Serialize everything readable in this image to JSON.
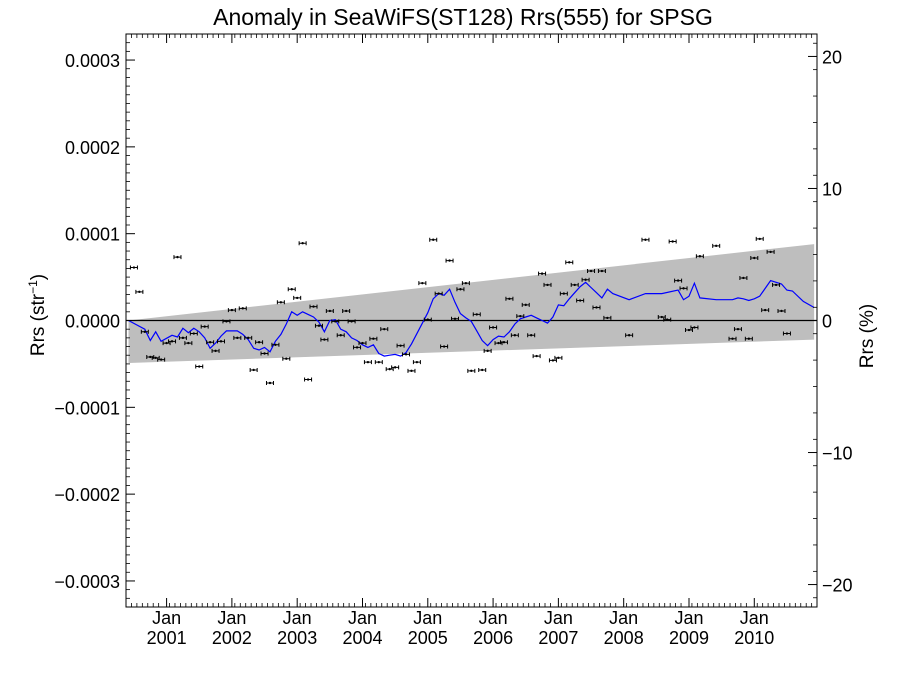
{
  "chart_data": {
    "type": "scatter",
    "title": "Anomaly in SeaWiFS(ST128) Rrs(555) for SPSG",
    "ylabel_left": "Rrs (str",
    "ylabel_left_sup": "−1",
    "ylabel_left_close": ")",
    "ylabel_right": "Rrs (%)",
    "left_ylim": [
      -0.00033,
      0.00033
    ],
    "right_ylim": [
      -21.7,
      21.7
    ],
    "xlim": [
      "2000-06-01",
      "2010-12-31"
    ],
    "grid": false,
    "left_ticks": [
      {
        "v": 0.0003,
        "label": "0.0003"
      },
      {
        "v": 0.0002,
        "label": "0.0002"
      },
      {
        "v": 0.0001,
        "label": "0.0001"
      },
      {
        "v": 0.0,
        "label": "0.0000"
      },
      {
        "v": -0.0001,
        "label": "−0.0001"
      },
      {
        "v": -0.0002,
        "label": "−0.0002"
      },
      {
        "v": -0.0003,
        "label": "−0.0003"
      }
    ],
    "right_ticks": [
      {
        "v": 20,
        "label": "20"
      },
      {
        "v": 10,
        "label": "10"
      },
      {
        "v": 0,
        "label": "0"
      },
      {
        "v": -10,
        "label": "−10"
      },
      {
        "v": -20,
        "label": "−20"
      }
    ],
    "x_ticks": [
      {
        "date": "2001-01",
        "label": "Jan",
        "year": "2001"
      },
      {
        "date": "2002-01",
        "label": "Jan",
        "year": "2002"
      },
      {
        "date": "2003-01",
        "label": "Jan",
        "year": "2003"
      },
      {
        "date": "2004-01",
        "label": "Jan",
        "year": "2004"
      },
      {
        "date": "2005-01",
        "label": "Jan",
        "year": "2005"
      },
      {
        "date": "2006-01",
        "label": "Jan",
        "year": "2006"
      },
      {
        "date": "2007-01",
        "label": "Jan",
        "year": "2007"
      },
      {
        "date": "2008-01",
        "label": "Jan",
        "year": "2008"
      },
      {
        "date": "2009-01",
        "label": "Jan",
        "year": "2009"
      },
      {
        "date": "2010-01",
        "label": "Jan",
        "year": "2010"
      }
    ],
    "band": {
      "start": {
        "date": "2000-06",
        "upper": 0.0,
        "lower": -4.9e-05
      },
      "end": {
        "date": "2010-12",
        "upper": 8.8e-05,
        "lower": -2.2e-05
      },
      "color": "#bebebe"
    },
    "zero_line_color": "#000000",
    "series": [
      {
        "type": "scatter",
        "color": "#000000",
        "points": [
          [
            "2000-07",
            6.1e-05
          ],
          [
            "2000-08",
            3.3e-05
          ],
          [
            "2000-09",
            -1.3e-05
          ],
          [
            "2000-10",
            -4.2e-05
          ],
          [
            "2000-11",
            -4.3e-05
          ],
          [
            "2000-12",
            -4.5e-05
          ],
          [
            "2001-01",
            -2.6e-05
          ],
          [
            "2001-02",
            -2.4e-05
          ],
          [
            "2001-03",
            7.3e-05
          ],
          [
            "2001-04",
            -2e-05
          ],
          [
            "2001-05",
            -2.6e-05
          ],
          [
            "2001-06",
            -1.5e-05
          ],
          [
            "2001-07",
            -5.3e-05
          ],
          [
            "2001-08",
            -7e-06
          ],
          [
            "2001-09",
            -2.5e-05
          ],
          [
            "2001-10",
            -3.5e-05
          ],
          [
            "2001-11",
            -2.4e-05
          ],
          [
            "2001-12",
            -1e-06
          ],
          [
            "2002-01",
            1.2e-05
          ],
          [
            "2002-02",
            -2e-05
          ],
          [
            "2002-03",
            1.4e-05
          ],
          [
            "2002-04",
            -2e-05
          ],
          [
            "2002-05",
            -5.7e-05
          ],
          [
            "2002-06",
            -2.5e-05
          ],
          [
            "2002-07",
            -3.8e-05
          ],
          [
            "2002-08",
            -7.2e-05
          ],
          [
            "2002-09",
            -2.8e-05
          ],
          [
            "2002-10",
            2.1e-05
          ],
          [
            "2002-11",
            -4.4e-05
          ],
          [
            "2002-12",
            3.6e-05
          ],
          [
            "2003-01",
            2.6e-05
          ],
          [
            "2003-02",
            8.9e-05
          ],
          [
            "2003-03",
            -6.8e-05
          ],
          [
            "2003-04",
            1.6e-05
          ],
          [
            "2003-05",
            -6e-06
          ],
          [
            "2003-06",
            -2.2e-05
          ],
          [
            "2003-07",
            1.1e-05
          ],
          [
            "2003-08",
            -1e-06
          ],
          [
            "2003-09",
            -1.7e-05
          ],
          [
            "2003-10",
            1.1e-05
          ],
          [
            "2003-11",
            -1e-06
          ],
          [
            "2003-12",
            -3.1e-05
          ],
          [
            "2004-01",
            -2.6e-05
          ],
          [
            "2004-02",
            -4.8e-05
          ],
          [
            "2004-03",
            -2.1e-05
          ],
          [
            "2004-04",
            -4.8e-05
          ],
          [
            "2004-05",
            -1e-05
          ],
          [
            "2004-06",
            -5.6e-05
          ],
          [
            "2004-07",
            -5.4e-05
          ],
          [
            "2004-08",
            -2.9e-05
          ],
          [
            "2004-09",
            -3.9e-05
          ],
          [
            "2004-10",
            -5.8e-05
          ],
          [
            "2004-11",
            -4.8e-05
          ],
          [
            "2004-12",
            4.3e-05
          ],
          [
            "2005-01",
            1e-06
          ],
          [
            "2005-02",
            9.3e-05
          ],
          [
            "2005-03",
            3.1e-05
          ],
          [
            "2005-04",
            -3e-05
          ],
          [
            "2005-05",
            6.9e-05
          ],
          [
            "2005-06",
            2e-06
          ],
          [
            "2005-07",
            3.6e-05
          ],
          [
            "2005-08",
            4.3e-05
          ],
          [
            "2005-09",
            -5.8e-05
          ],
          [
            "2005-10",
            7e-06
          ],
          [
            "2005-11",
            -5.7e-05
          ],
          [
            "2005-12",
            -3.5e-05
          ],
          [
            "2006-01",
            -8e-06
          ],
          [
            "2006-02",
            -2.6e-05
          ],
          [
            "2006-03",
            -2.5e-05
          ],
          [
            "2006-04",
            2.5e-05
          ],
          [
            "2006-05",
            -1.7e-05
          ],
          [
            "2006-06",
            5e-06
          ],
          [
            "2006-07",
            1.8e-05
          ],
          [
            "2006-08",
            -1.7e-05
          ],
          [
            "2006-09",
            -4.1e-05
          ],
          [
            "2006-10",
            5.4e-05
          ],
          [
            "2006-11",
            4.1e-05
          ],
          [
            "2006-12",
            -4.6e-05
          ],
          [
            "2007-01",
            -4.3e-05
          ],
          [
            "2007-02",
            3.1e-05
          ],
          [
            "2007-03",
            6.7e-05
          ],
          [
            "2007-04",
            4.1e-05
          ],
          [
            "2007-05",
            2.3e-05
          ],
          [
            "2007-06",
            4.7e-05
          ],
          [
            "2007-07",
            5.7e-05
          ],
          [
            "2007-08",
            1.5e-05
          ],
          [
            "2007-09",
            5.7e-05
          ],
          [
            "2007-10",
            3e-06
          ],
          [
            "2008-02",
            -1.7e-05
          ],
          [
            "2008-05",
            9.3e-05
          ],
          [
            "2008-08",
            4e-06
          ],
          [
            "2008-09",
            1e-06
          ],
          [
            "2008-10",
            9.1e-05
          ],
          [
            "2008-11",
            4.6e-05
          ],
          [
            "2008-12",
            3.7e-05
          ],
          [
            "2009-01",
            -1.1e-05
          ],
          [
            "2009-02",
            -8e-06
          ],
          [
            "2009-03",
            7.4e-05
          ],
          [
            "2009-06",
            8.6e-05
          ],
          [
            "2009-09",
            -2.1e-05
          ],
          [
            "2009-10",
            -1e-05
          ],
          [
            "2009-11",
            4.9e-05
          ],
          [
            "2009-12",
            -2.1e-05
          ],
          [
            "2010-01",
            7.2e-05
          ],
          [
            "2010-02",
            9.4e-05
          ],
          [
            "2010-03",
            1.2e-05
          ],
          [
            "2010-04",
            7.9e-05
          ],
          [
            "2010-05",
            4.1e-05
          ],
          [
            "2010-06",
            1.1e-05
          ],
          [
            "2010-07",
            -1.5e-05
          ]
        ]
      },
      {
        "type": "line",
        "color": "#0000ff",
        "points": [
          [
            "2000-06",
            0.0
          ],
          [
            "2000-09",
            -1e-05
          ],
          [
            "2000-10",
            -2.3e-05
          ],
          [
            "2000-11",
            -1.3e-05
          ],
          [
            "2000-12",
            -2.4e-05
          ],
          [
            "2001-02",
            -1.7e-05
          ],
          [
            "2001-03",
            -1.9e-05
          ],
          [
            "2001-04",
            -9e-06
          ],
          [
            "2001-05",
            -1.4e-05
          ],
          [
            "2001-06",
            -9e-06
          ],
          [
            "2001-07",
            -1.3e-05
          ],
          [
            "2001-08",
            -2e-05
          ],
          [
            "2001-09",
            -3.2e-05
          ],
          [
            "2001-10",
            -2.6e-05
          ],
          [
            "2001-11",
            -1.8e-05
          ],
          [
            "2001-12",
            -1.2e-05
          ],
          [
            "2002-02",
            -1.2e-05
          ],
          [
            "2002-03",
            -1.6e-05
          ],
          [
            "2002-04",
            -2.2e-05
          ],
          [
            "2002-05",
            -3.2e-05
          ],
          [
            "2002-06",
            -3.4e-05
          ],
          [
            "2002-07",
            -3.1e-05
          ],
          [
            "2002-08",
            -3.6e-05
          ],
          [
            "2002-09",
            -2.4e-05
          ],
          [
            "2002-10",
            -1.6e-05
          ],
          [
            "2002-11",
            -4e-06
          ],
          [
            "2002-12",
            1e-05
          ],
          [
            "2003-01",
            6e-06
          ],
          [
            "2003-02",
            1e-05
          ],
          [
            "2003-03",
            7e-06
          ],
          [
            "2003-04",
            4e-06
          ],
          [
            "2003-05",
            -2e-06
          ],
          [
            "2003-06",
            -1.3e-05
          ],
          [
            "2003-07",
            0.0
          ],
          [
            "2003-08",
            1e-06
          ],
          [
            "2003-09",
            -1e-05
          ],
          [
            "2003-10",
            -1.3e-05
          ],
          [
            "2003-11",
            -2e-05
          ],
          [
            "2003-12",
            -2.3e-05
          ],
          [
            "2004-01",
            -2.8e-05
          ],
          [
            "2004-02",
            -3.1e-05
          ],
          [
            "2004-03",
            -2.8e-05
          ],
          [
            "2004-04",
            -3.8e-05
          ],
          [
            "2004-05",
            -4.1e-05
          ],
          [
            "2004-06",
            -4e-05
          ],
          [
            "2004-07",
            -3.9e-05
          ],
          [
            "2004-08",
            -4.1e-05
          ],
          [
            "2004-09",
            -3.7e-05
          ],
          [
            "2004-10",
            -2.7e-05
          ],
          [
            "2005-01",
            9e-06
          ],
          [
            "2005-02",
            2.5e-05
          ],
          [
            "2005-03",
            3.1e-05
          ],
          [
            "2005-04",
            2.9e-05
          ],
          [
            "2005-05",
            3.6e-05
          ],
          [
            "2005-06",
            2.1e-05
          ],
          [
            "2005-07",
            8e-06
          ],
          [
            "2005-08",
            3e-06
          ],
          [
            "2005-09",
            -1e-06
          ],
          [
            "2005-10",
            -1.2e-05
          ],
          [
            "2005-11",
            -2.3e-05
          ],
          [
            "2005-12",
            -2.9e-05
          ],
          [
            "2006-01",
            -2.2e-05
          ],
          [
            "2006-02",
            -1.8e-05
          ],
          [
            "2006-03",
            -1.9e-05
          ],
          [
            "2006-04",
            -1.3e-05
          ],
          [
            "2006-05",
            -4e-06
          ],
          [
            "2006-06",
            2e-06
          ],
          [
            "2006-07",
            4e-06
          ],
          [
            "2006-08",
            6e-06
          ],
          [
            "2006-09",
            3e-06
          ],
          [
            "2006-10",
            0.0
          ],
          [
            "2006-11",
            -3e-06
          ],
          [
            "2006-12",
            4e-06
          ],
          [
            "2007-01",
            1.8e-05
          ],
          [
            "2007-02",
            1.7e-05
          ],
          [
            "2007-03",
            2.5e-05
          ],
          [
            "2007-04",
            3.2e-05
          ],
          [
            "2007-05",
            3.9e-05
          ],
          [
            "2007-06",
            4.4e-05
          ],
          [
            "2007-07",
            3.8e-05
          ],
          [
            "2007-08",
            3.2e-05
          ],
          [
            "2007-09",
            2.6e-05
          ],
          [
            "2007-10",
            3.6e-05
          ],
          [
            "2007-11",
            3.1e-05
          ],
          [
            "2008-02",
            2.4e-05
          ],
          [
            "2008-05",
            3.1e-05
          ],
          [
            "2008-08",
            3.1e-05
          ],
          [
            "2008-11",
            3.5e-05
          ],
          [
            "2008-12",
            2.4e-05
          ],
          [
            "2009-01",
            2.8e-05
          ],
          [
            "2009-02",
            4.3e-05
          ],
          [
            "2009-03",
            2.6e-05
          ],
          [
            "2009-06",
            2.4e-05
          ],
          [
            "2009-09",
            2.4e-05
          ],
          [
            "2009-10",
            2.6e-05
          ],
          [
            "2009-11",
            2.5e-05
          ],
          [
            "2009-12",
            2.3e-05
          ],
          [
            "2010-01",
            2.5e-05
          ],
          [
            "2010-02",
            2.8e-05
          ],
          [
            "2010-04",
            4.6e-05
          ],
          [
            "2010-06",
            4.2e-05
          ],
          [
            "2010-07",
            3.5e-05
          ],
          [
            "2010-08",
            3.4e-05
          ],
          [
            "2010-10",
            2.2e-05
          ],
          [
            "2010-12",
            1.5e-05
          ]
        ]
      }
    ]
  }
}
